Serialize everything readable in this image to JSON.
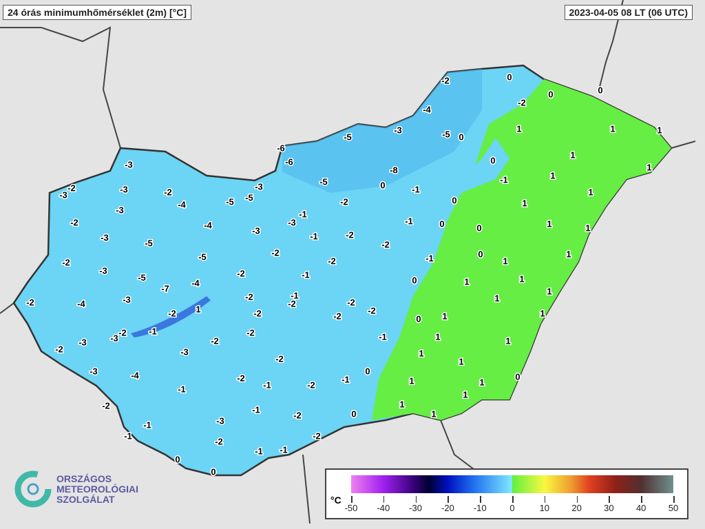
{
  "title": "24 órás minimumhőmérséklet (2m) [°C]",
  "timestamp": "2023-04-05 08 LT (06 UTC)",
  "legend": {
    "unit": "°C",
    "ticks": [
      "-50",
      "-40",
      "-30",
      "-20",
      "-10",
      "0",
      "10",
      "20",
      "30",
      "40",
      "50"
    ],
    "colors": {
      "below_zero": "#5cd0f0",
      "above_zero": "#60f040"
    }
  },
  "logo": {
    "line1": "ORSZÁGOS",
    "line2": "METEOROLÓGIAI",
    "line3": "SZOLGÁLAT"
  },
  "station_values": [
    -2,
    0,
    0,
    0,
    -2,
    -4,
    1,
    1,
    1,
    -3,
    -5,
    0,
    -5,
    -6,
    -6,
    0,
    1,
    1,
    -3,
    -8,
    -1,
    1,
    -2,
    -3,
    -3,
    -2,
    -3,
    -5,
    0,
    -1,
    1,
    -4,
    -5,
    -5,
    -2,
    0,
    1,
    -3,
    -1,
    -2,
    -4,
    -3,
    -1,
    0,
    0,
    1,
    1,
    -3,
    -3,
    -1,
    -2,
    -5,
    -2,
    -2,
    -5,
    -2,
    -2,
    -1,
    0,
    1,
    1,
    -3,
    -2,
    -1,
    0,
    -5,
    -7,
    -4,
    1,
    1,
    -2,
    -4,
    -3,
    -2,
    -1,
    -2,
    -2,
    -2,
    1,
    1,
    -2,
    1,
    -2,
    -2,
    0,
    1,
    1,
    -3,
    -2,
    -1,
    -2,
    -1,
    1,
    -2,
    -3,
    -2,
    -3,
    1,
    1,
    -2,
    1,
    -3,
    -4,
    -2,
    -1,
    -2,
    -1,
    0,
    0,
    1,
    1,
    -1,
    1,
    -2,
    -1,
    1,
    -1,
    -3,
    -2,
    0,
    1,
    -1,
    -2,
    -2,
    -1,
    -1,
    0,
    0
  ]
}
